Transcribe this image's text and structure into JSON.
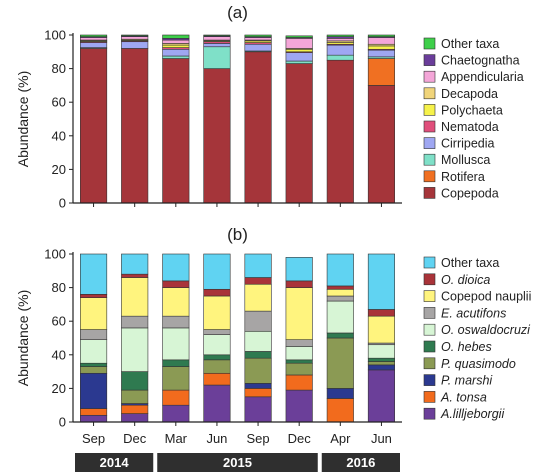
{
  "chart_data": [
    {
      "type": "bar",
      "stacked": true,
      "panel_label": "(a)",
      "categories": [
        "Sep",
        "Dec",
        "Mar",
        "Jun",
        "Sep",
        "Dec",
        "Apr",
        "Jun"
      ],
      "ylabel": "Abundance (%)",
      "ylim": [
        0,
        100
      ],
      "yticks": [
        0,
        20,
        40,
        60,
        80,
        100
      ],
      "legend_position": "right",
      "series": [
        {
          "name": "Copepoda",
          "color": "#a5353a",
          "values": [
            92,
            92,
            86,
            80,
            90,
            83,
            85,
            70
          ]
        },
        {
          "name": "Rotifera",
          "color": "#f07022",
          "values": [
            0,
            0,
            0,
            0,
            0,
            0,
            0,
            16
          ]
        },
        {
          "name": "Mollusca",
          "color": "#7fe0c8",
          "values": [
            0.5,
            0,
            1.5,
            13,
            0.5,
            1.5,
            3,
            1
          ]
        },
        {
          "name": "Cirripedia",
          "color": "#9fa7f2",
          "values": [
            3,
            4,
            4,
            2,
            4,
            5,
            6,
            4
          ]
        },
        {
          "name": "Nematoda",
          "color": "#e04e7b",
          "values": [
            0.5,
            0.5,
            1,
            1,
            1,
            0.5,
            0.5,
            0.5
          ]
        },
        {
          "name": "Polychaeta",
          "color": "#f6f24a",
          "values": [
            0.5,
            0.5,
            1.5,
            0.5,
            1,
            1.5,
            1,
            2
          ]
        },
        {
          "name": "Decapoda",
          "color": "#f0d47a",
          "values": [
            0.5,
            0.5,
            1,
            0.5,
            0.5,
            0.5,
            1,
            1
          ]
        },
        {
          "name": "Appendicularia",
          "color": "#f4a6d8",
          "values": [
            1.5,
            1.5,
            2,
            2,
            1.5,
            6,
            1.5,
            4
          ]
        },
        {
          "name": "Chaetognatha",
          "color": "#6a3d9a",
          "values": [
            0.5,
            0.5,
            1,
            0.5,
            0.5,
            0.5,
            1,
            0.5
          ]
        },
        {
          "name": "Other taxa",
          "color": "#3ecf4a",
          "values": [
            1,
            0.5,
            2,
            0.5,
            1,
            1,
            1,
            1
          ]
        }
      ]
    },
    {
      "type": "bar",
      "stacked": true,
      "panel_label": "(b)",
      "categories": [
        "Sep",
        "Dec",
        "Mar",
        "Jun",
        "Sep",
        "Dec",
        "Apr",
        "Jun"
      ],
      "ylabel": "Abundance (%)",
      "ylim": [
        0,
        100
      ],
      "yticks": [
        0,
        20,
        40,
        60,
        80,
        100
      ],
      "legend_position": "right",
      "series": [
        {
          "name": "A.lilljeborgii",
          "color": "#6b3f99",
          "values": [
            4,
            5,
            10,
            22,
            15,
            19,
            0,
            31
          ]
        },
        {
          "name": "A. tonsa",
          "color": "#f26b1d",
          "values": [
            4,
            5,
            9,
            7,
            5,
            9,
            14,
            0
          ]
        },
        {
          "name": "P. marshi",
          "color": "#2b3990",
          "values": [
            21,
            1,
            0,
            0,
            3,
            0,
            6,
            3
          ]
        },
        {
          "name": "P. quasimodo",
          "color": "#8b9a54",
          "values": [
            4,
            8,
            14,
            8,
            15,
            7,
            30,
            2
          ]
        },
        {
          "name": "O. hebes",
          "color": "#2f7a50",
          "values": [
            2,
            11,
            4,
            3,
            4,
            2,
            3,
            2
          ]
        },
        {
          "name": "O. oswaldocruzi",
          "color": "#d7f5d5",
          "values": [
            14,
            26,
            19,
            12,
            12,
            8,
            19,
            8
          ]
        },
        {
          "name": "E. acutifons",
          "color": "#a7a5a5",
          "values": [
            6,
            7,
            7,
            3,
            12,
            4,
            3,
            1
          ]
        },
        {
          "name": "Copepod nauplii",
          "color": "#fff47e",
          "values": [
            19,
            23,
            17,
            20,
            16,
            31,
            4,
            16
          ]
        },
        {
          "name": "O. dioica",
          "color": "#a93339",
          "values": [
            2,
            2,
            4,
            4,
            4,
            4,
            2,
            4
          ]
        },
        {
          "name": "Other taxa",
          "color": "#60d3f2",
          "values": [
            24,
            12,
            16,
            21,
            14,
            14,
            19,
            33
          ]
        }
      ]
    }
  ],
  "years": [
    {
      "label": "2014",
      "span": [
        0,
        1
      ]
    },
    {
      "label": "2015",
      "span": [
        2,
        5
      ]
    },
    {
      "label": "2016",
      "span": [
        6,
        7
      ]
    }
  ]
}
